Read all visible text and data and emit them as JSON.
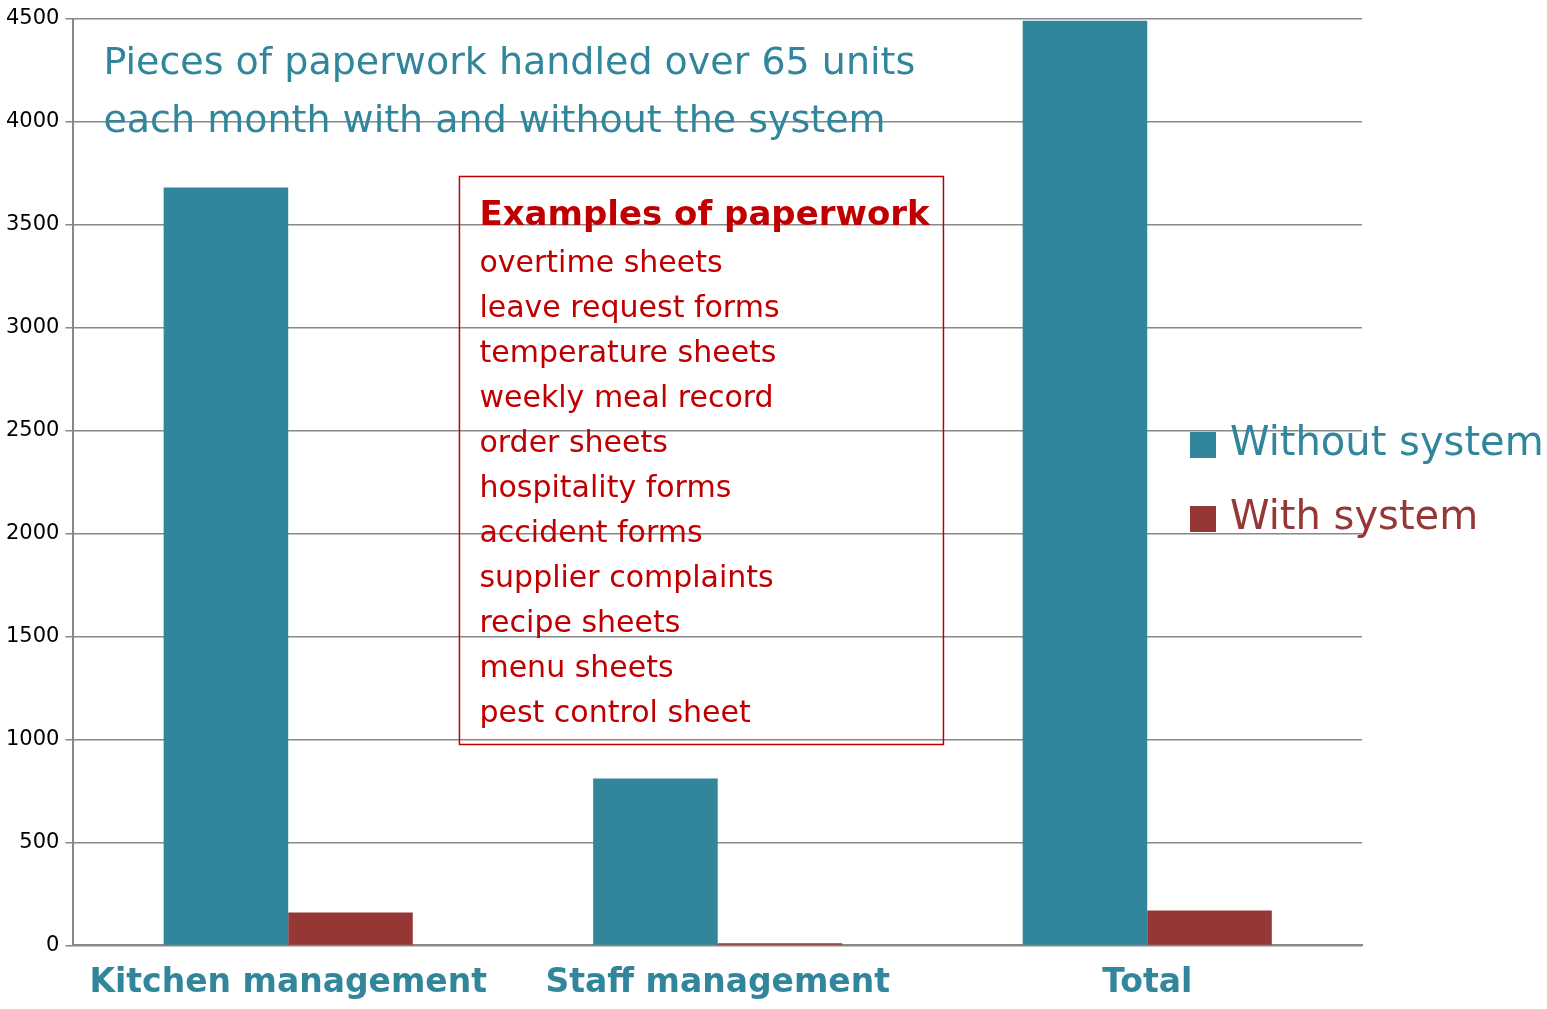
{
  "chart_data": {
    "type": "bar",
    "title": "Pieces of paperwork handled over 65 units each month with and without the system",
    "categories": [
      "Kitchen management",
      "Staff management",
      "Total"
    ],
    "series": [
      {
        "name": "Without system",
        "color": "#31869b",
        "values": [
          3680,
          810,
          4490
        ]
      },
      {
        "name": "With system",
        "color": "#953735",
        "values": [
          160,
          10,
          170
        ]
      }
    ],
    "ylim": [
      0,
      4500
    ],
    "yticks": [
      0,
      500,
      1000,
      1500,
      2000,
      2500,
      3000,
      3500,
      4000,
      4500
    ],
    "grid": "y",
    "legend": "right",
    "annotations": [
      "Examples of paperwork",
      "overtime sheets",
      "leave request forms",
      "temperature sheets",
      "weekly meal record",
      "order sheets",
      "hospitality forms",
      "accident forms",
      "supplier complaints",
      "recipe sheets",
      "menu sheets",
      "pest control sheet"
    ]
  }
}
